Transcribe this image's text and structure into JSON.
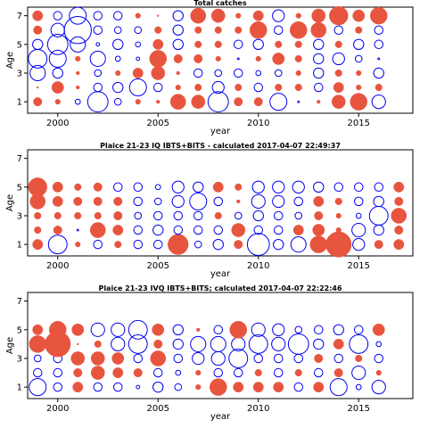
{
  "chart_data": [
    {
      "type": "scatter",
      "title": "Total catches",
      "xlabel": "year",
      "ylabel": "Age",
      "xlim": [
        1998.5,
        2017.7
      ],
      "ylim": [
        0.2,
        7.6
      ],
      "x_ticks": [
        2000,
        2005,
        2010,
        2015
      ],
      "y_ticks": [
        1,
        3,
        5,
        7
      ],
      "encoding": "bubble size = |residual|; filled red = positive, open blue = negative",
      "colors": {
        "positive": "#e8553f",
        "negative": "#0000ee"
      },
      "years": [
        1999,
        2000,
        2001,
        2002,
        2003,
        2004,
        2005,
        2006,
        2007,
        2008,
        2009,
        2010,
        2011,
        2012,
        2013,
        2014,
        2015,
        2016
      ],
      "ages": [
        1,
        2,
        3,
        4,
        5,
        6,
        7
      ],
      "residuals": [
        [
          0.5,
          0.3,
          -0.3,
          -1.2,
          -0.4,
          0.3,
          0.2,
          0.9,
          0.8,
          -1.2,
          0.5,
          0.5,
          -1.0,
          -0.1,
          0.2,
          0.8,
          1.0,
          -0.8
        ],
        [
          0.1,
          0.7,
          0.2,
          -0.5,
          -0.6,
          -1.0,
          -0.5,
          0.3,
          0.4,
          -0.7,
          0.4,
          -0.5,
          0.4,
          0.4,
          -0.5,
          0.6,
          0.3,
          0.4
        ],
        [
          -0.9,
          -0.6,
          0.2,
          -0.4,
          0.3,
          0.6,
          0.8,
          0.2,
          -0.5,
          -0.4,
          -0.5,
          -0.3,
          -0.4,
          0.3,
          -0.6,
          0.4,
          0.3,
          -0.6
        ],
        [
          -1.1,
          -1.0,
          0.3,
          -0.9,
          -0.3,
          -0.2,
          1.0,
          0.5,
          0.5,
          0.3,
          -0.1,
          0.3,
          0.7,
          0.4,
          -0.6,
          -0.7,
          -0.4,
          -0.1
        ],
        [
          -0.6,
          -1.2,
          -0.9,
          -0.2,
          -0.6,
          -0.3,
          0.6,
          -0.6,
          0.4,
          0.4,
          -0.5,
          -0.6,
          0.4,
          0.4,
          -0.6,
          0.4,
          -0.6,
          -0.5
        ],
        [
          0.5,
          -0.8,
          -1.6,
          -0.5,
          -0.4,
          -0.4,
          0.4,
          -0.6,
          0.4,
          0.4,
          0.4,
          1.0,
          -0.5,
          1.0,
          0.9,
          -0.5,
          0.4,
          -0.5
        ],
        [
          0.6,
          -0.5,
          -1.0,
          -0.5,
          -0.5,
          0.3,
          0.1,
          -0.6,
          0.9,
          0.8,
          0.3,
          0.6,
          -0.7,
          0.3,
          0.8,
          1.1,
          0.7,
          1.0
        ]
      ]
    },
    {
      "type": "scatter",
      "title": "Plaice 21-23 IQ IBTS+BITS - calculated 2017-04-07 22:49:37",
      "xlabel": "year",
      "ylabel": "Age",
      "xlim": [
        1998.5,
        2017.7
      ],
      "ylim": [
        0.2,
        7.6
      ],
      "x_ticks": [
        2000,
        2005,
        2010,
        2015
      ],
      "y_ticks": [
        1,
        3,
        5,
        7
      ],
      "encoding": "bubble size = |residual|; filled red = positive, open blue = negative",
      "colors": {
        "positive": "#e8553f",
        "negative": "#0000ee"
      },
      "years": [
        1999,
        2000,
        2001,
        2002,
        2003,
        2004,
        2005,
        2006,
        2007,
        2008,
        2009,
        2010,
        2011,
        2012,
        2013,
        2014,
        2015,
        2016,
        2017
      ],
      "ages": [
        1,
        2,
        3,
        4,
        5
      ],
      "residuals": [
        [
          0.6,
          -1.1,
          0.3,
          -0.5,
          0.4,
          -0.5,
          -0.5,
          1.2,
          -0.4,
          -0.6,
          0.5,
          -1.3,
          -0.6,
          -0.9,
          1.0,
          1.5,
          -0.7,
          0.5,
          0.6
        ],
        [
          0.4,
          0.5,
          -0.1,
          0.9,
          0.6,
          -0.5,
          -0.6,
          -0.5,
          -0.5,
          -0.5,
          0.8,
          -0.5,
          -0.5,
          0.6,
          0.7,
          0.3,
          -0.8,
          -0.6,
          0.5
        ],
        [
          0.4,
          0.4,
          0.4,
          0.4,
          0.5,
          -0.4,
          -0.5,
          -0.5,
          -0.5,
          0.4,
          -0.4,
          -0.6,
          -0.5,
          -0.4,
          0.5,
          0.3,
          -0.3,
          -1.1,
          0.9
        ],
        [
          0.9,
          0.6,
          0.5,
          0.5,
          0.5,
          -0.5,
          -0.4,
          -0.7,
          -1.0,
          -0.5,
          0.2,
          -0.8,
          -0.7,
          -0.5,
          0.6,
          0.4,
          -0.5,
          -0.6,
          0.5
        ],
        [
          1.1,
          0.6,
          0.4,
          0.5,
          -0.5,
          -0.5,
          -0.3,
          -0.7,
          -0.6,
          0.6,
          0.4,
          -0.7,
          -0.7,
          -0.7,
          -0.6,
          -0.5,
          -0.5,
          -0.5,
          0.6
        ]
      ]
    },
    {
      "type": "scatter",
      "title": "Plaice 21-23 IVQ IBTS+BITS; calculated 2017-04-07 22:22:46",
      "xlabel": "year",
      "ylabel": "Age",
      "xlim": [
        1998.5,
        2017.7
      ],
      "ylim": [
        0.2,
        7.6
      ],
      "x_ticks": [
        2000,
        2005,
        2010,
        2015
      ],
      "y_ticks": [
        1,
        3,
        5,
        7
      ],
      "encoding": "bubble size = |residual|; filled red = positive, open blue = negative",
      "colors": {
        "positive": "#e8553f",
        "negative": "#0000ee"
      },
      "years": [
        1999,
        2000,
        2001,
        2002,
        2003,
        2004,
        2005,
        2006,
        2007,
        2008,
        2009,
        2010,
        2011,
        2012,
        2013,
        2014,
        2015,
        2016
      ],
      "ages": [
        1,
        2,
        3,
        4,
        5
      ],
      "residuals": [
        [
          -1.0,
          -0.5,
          0.6,
          -0.5,
          -0.5,
          -0.2,
          -0.6,
          -0.4,
          0.3,
          1.0,
          0.6,
          0.6,
          0.6,
          -0.5,
          0.6,
          -1.0,
          -0.3,
          -0.8
        ],
        [
          -0.5,
          -0.5,
          0.5,
          0.8,
          0.6,
          0.5,
          -0.5,
          -0.3,
          0.3,
          -0.5,
          -0.5,
          0.4,
          -0.5,
          0.4,
          -0.5,
          0.5,
          -0.8,
          0.3
        ],
        [
          -0.4,
          -0.5,
          0.8,
          0.8,
          0.7,
          -0.5,
          0.9,
          -0.5,
          -0.7,
          -0.8,
          -1.1,
          -0.5,
          -0.5,
          -0.5,
          0.5,
          -0.5,
          0.4,
          -0.5
        ],
        [
          1.0,
          1.5,
          0.1,
          0.4,
          -0.8,
          -1.1,
          0.5,
          -0.6,
          -0.9,
          -0.9,
          -0.8,
          -1.1,
          -0.8,
          -1.2,
          -0.6,
          0.6,
          -1.1,
          -0.3
        ],
        [
          0.6,
          1.0,
          0.7,
          -0.8,
          -0.8,
          -1.1,
          0.7,
          -0.6,
          0.2,
          -0.5,
          1.0,
          -0.8,
          -0.7,
          -0.4,
          -0.5,
          -0.6,
          -0.5,
          0.7
        ]
      ]
    }
  ]
}
